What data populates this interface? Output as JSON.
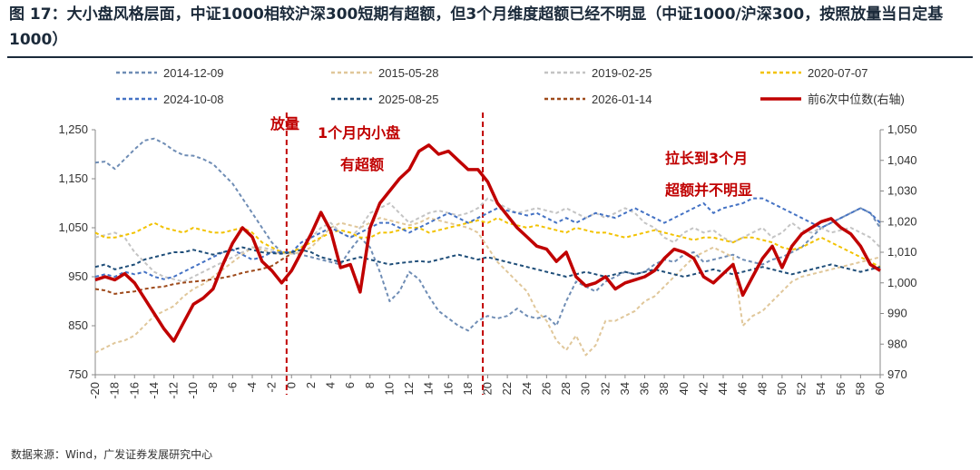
{
  "header": {
    "title": "图 17：大小盘风格层面，中证1000相较沪深300短期有超额，但3个月维度超额已经不明显（中证1000/沪深300，按照放量当日定基1000）"
  },
  "footer": {
    "source": "数据来源：Wind，广发证券发展研究中心"
  },
  "chart_data": {
    "type": "line",
    "title": "中证1000/沪深300，按照放量当日定基1000",
    "xlabel": "",
    "ylabel": "",
    "y2label": "前6次中位数(右轴)",
    "x": [
      -20,
      -19,
      -18,
      -17,
      -16,
      -15,
      -14,
      -13,
      -12,
      -11,
      -10,
      -9,
      -8,
      -7,
      -6,
      -5,
      -4,
      -3,
      -2,
      -1,
      0,
      1,
      2,
      3,
      4,
      5,
      6,
      7,
      8,
      9,
      10,
      11,
      12,
      13,
      14,
      15,
      16,
      17,
      18,
      19,
      20,
      21,
      22,
      23,
      24,
      25,
      26,
      27,
      28,
      29,
      30,
      31,
      32,
      33,
      34,
      35,
      36,
      37,
      38,
      39,
      40,
      41,
      42,
      43,
      44,
      45,
      46,
      47,
      48,
      49,
      50,
      51,
      52,
      53,
      54,
      55,
      56,
      57,
      58,
      59,
      60
    ],
    "x_tick_labels": [
      "-20",
      "-18",
      "-16",
      "-14",
      "-12",
      "-10",
      "-8",
      "-6",
      "-4",
      "-2",
      "0",
      "2",
      "4",
      "6",
      "8",
      "10",
      "12",
      "14",
      "16",
      "18",
      "20",
      "22",
      "24",
      "26",
      "28",
      "30",
      "32",
      "34",
      "36",
      "38",
      "40",
      "42",
      "44",
      "46",
      "48",
      "50",
      "52",
      "54",
      "56",
      "58",
      "60"
    ],
    "ylim": [
      750,
      1250
    ],
    "yticks": [
      "750",
      "850",
      "950",
      "1,050",
      "1,150",
      "1,250"
    ],
    "y2lim": [
      970,
      1050
    ],
    "y2ticks": [
      "970",
      "980",
      "990",
      "1,000",
      "1,010",
      "1,020",
      "1,030",
      "1,040",
      "1,050"
    ],
    "series": [
      {
        "name": "2014-12-09",
        "color": "#6f8db5",
        "dash": "dash",
        "axis": "left",
        "values": [
          1183,
          1185,
          1170,
          1190,
          1210,
          1228,
          1232,
          1222,
          1208,
          1198,
          1197,
          1190,
          1180,
          1160,
          1140,
          1110,
          1080,
          1050,
          1020,
          1000,
          998,
          995,
          990,
          985,
          980,
          975,
          1005,
          1030,
          1010,
          960,
          900,
          920,
          960,
          945,
          910,
          880,
          865,
          850,
          840,
          860,
          870,
          865,
          870,
          885,
          870,
          865,
          870,
          850,
          900,
          940,
          930,
          920,
          940,
          950,
          960,
          955,
          960,
          975,
          985,
          980,
          995,
          1000,
          980,
          985,
          990,
          995,
          985,
          980,
          975,
          985,
          990,
          1000,
          1010,
          1030,
          1050,
          1060,
          1070,
          1080,
          1090,
          1080,
          1050
        ]
      },
      {
        "name": "2015-05-28",
        "color": "#e0c79a",
        "dash": "dash",
        "axis": "left",
        "values": [
          795,
          805,
          815,
          820,
          830,
          850,
          870,
          880,
          890,
          910,
          925,
          935,
          950,
          965,
          980,
          995,
          1010,
          1005,
          1000,
          998,
          997,
          1000,
          1010,
          1030,
          1050,
          1060,
          1055,
          1050,
          1060,
          1070,
          1065,
          1060,
          1055,
          1060,
          1070,
          1065,
          1060,
          1055,
          1050,
          1040,
          1010,
          980,
          960,
          940,
          920,
          880,
          860,
          820,
          800,
          830,
          790,
          810,
          860,
          860,
          870,
          880,
          900,
          910,
          930,
          950,
          970,
          990,
          1000,
          1010,
          1000,
          990,
          850,
          870,
          880,
          900,
          920,
          940,
          950,
          955,
          960,
          965,
          970,
          975,
          980,
          985,
          990
        ]
      },
      {
        "name": "2019-02-25",
        "color": "#c4c4c4",
        "dash": "dash",
        "axis": "left",
        "values": [
          1030,
          1035,
          1040,
          1030,
          1000,
          980,
          960,
          950,
          945,
          940,
          950,
          960,
          970,
          980,
          990,
          1000,
          1010,
          1010,
          1005,
          1000,
          1000,
          1010,
          1030,
          1050,
          1060,
          1040,
          1030,
          1050,
          1080,
          1090,
          1100,
          1080,
          1060,
          1070,
          1080,
          1085,
          1080,
          1075,
          1080,
          1090,
          1110,
          1100,
          1090,
          1080,
          1085,
          1090,
          1085,
          1080,
          1090,
          1080,
          1070,
          1080,
          1070,
          1080,
          1090,
          1080,
          1060,
          1050,
          1030,
          1020,
          1040,
          1050,
          1040,
          1045,
          1030,
          1020,
          1030,
          1040,
          1050,
          1030,
          1040,
          1060,
          1045,
          1040,
          1050,
          1040,
          1045,
          1050,
          1040,
          1030,
          1010
        ]
      },
      {
        "name": "2020-07-07",
        "color": "#f2c200",
        "dash": "dash",
        "axis": "left",
        "values": [
          1040,
          1030,
          1030,
          1035,
          1040,
          1050,
          1060,
          1050,
          1045,
          1040,
          1050,
          1045,
          1040,
          1040,
          1045,
          1050,
          1040,
          1020,
          1010,
          1000,
          1000,
          1010,
          1020,
          1030,
          1040,
          1045,
          1040,
          1030,
          1030,
          1040,
          1040,
          1045,
          1050,
          1050,
          1040,
          1045,
          1050,
          1055,
          1060,
          1065,
          1060,
          1070,
          1060,
          1055,
          1050,
          1055,
          1050,
          1045,
          1040,
          1050,
          1045,
          1040,
          1040,
          1035,
          1030,
          1035,
          1040,
          1045,
          1040,
          1035,
          1030,
          1025,
          1030,
          1030,
          1025,
          1020,
          1030,
          1030,
          1025,
          1020,
          1010,
          1005,
          1010,
          1020,
          1030,
          1020,
          1010,
          1000,
          990,
          980,
          970
        ]
      },
      {
        "name": "2024-10-08",
        "color": "#4472c4",
        "dash": "dash",
        "axis": "left",
        "values": [
          950,
          955,
          950,
          960,
          955,
          960,
          950,
          945,
          950,
          960,
          970,
          980,
          990,
          1000,
          1005,
          995,
          985,
          990,
          1000,
          1000,
          1000,
          1020,
          1030,
          1040,
          1050,
          1040,
          1030,
          1040,
          1050,
          1060,
          1060,
          1050,
          1040,
          1050,
          1060,
          1070,
          1080,
          1070,
          1060,
          1070,
          1080,
          1090,
          1085,
          1080,
          1075,
          1080,
          1070,
          1060,
          1070,
          1060,
          1070,
          1080,
          1075,
          1070,
          1080,
          1090,
          1080,
          1070,
          1060,
          1070,
          1080,
          1090,
          1100,
          1080,
          1090,
          1095,
          1100,
          1110,
          1110,
          1100,
          1090,
          1080,
          1070,
          1060,
          1050,
          1060,
          1070,
          1080,
          1090,
          1080,
          1060
        ]
      },
      {
        "name": "2025-08-25",
        "color": "#1f4e79",
        "dash": "dash",
        "axis": "left",
        "values": [
          970,
          975,
          965,
          970,
          975,
          985,
          990,
          995,
          1000,
          1000,
          1005,
          1000,
          995,
          1000,
          1005,
          1010,
          1005,
          1000,
          998,
          997,
          1000,
          1005,
          1000,
          990,
          985,
          980,
          985,
          990,
          985,
          980,
          975,
          978,
          980,
          982,
          980,
          985,
          990,
          995,
          990,
          985,
          990,
          985,
          980,
          975,
          970,
          965,
          960,
          955,
          950,
          955,
          960,
          955,
          950,
          955,
          960,
          955,
          960,
          965,
          960,
          955,
          950,
          955,
          960,
          965,
          960,
          955,
          960,
          965,
          970,
          965,
          960,
          955,
          960,
          965,
          970,
          975,
          970,
          965,
          960,
          965,
          970
        ]
      },
      {
        "name": "2026-01-14",
        "color": "#9e4a1b",
        "dash": "dash",
        "axis": "left",
        "values": [
          925,
          922,
          915,
          918,
          920,
          925,
          928,
          930,
          935,
          938,
          940,
          942,
          945,
          948,
          952,
          958,
          962,
          966,
          972,
          985,
          997,
          null,
          null,
          null,
          null,
          null,
          null,
          null,
          null,
          null,
          null,
          null,
          null,
          null,
          null,
          null,
          null,
          null,
          null,
          null,
          null,
          null,
          null,
          null,
          null,
          null,
          null,
          null,
          null,
          null,
          null,
          null,
          null,
          null,
          null,
          null,
          null,
          null,
          null,
          null,
          null,
          null,
          null,
          null,
          null,
          null,
          null,
          null,
          null,
          null,
          null,
          null,
          null,
          null,
          null,
          null,
          null,
          null,
          null,
          null,
          null
        ]
      },
      {
        "name": "前6次中位数(右轴)",
        "color": "#c00000",
        "dash": "solid",
        "axis": "right",
        "values": [
          1001,
          1002,
          1001,
          1003,
          1000,
          995,
          990,
          985,
          981,
          987,
          993,
          995,
          998,
          1006,
          1013,
          1018,
          1015,
          1007,
          1004,
          1000,
          1004,
          1010,
          1016,
          1023,
          1017,
          1005,
          1006,
          997,
          1018,
          1026,
          1030,
          1034,
          1037,
          1043,
          1045,
          1042,
          1043,
          1040,
          1037,
          1037,
          1033,
          1026,
          1022,
          1018,
          1015,
          1012,
          1011,
          1007,
          1010,
          1002,
          999,
          1000,
          1002,
          998,
          1000,
          1001,
          1002,
          1004,
          1008,
          1011,
          1010,
          1008,
          1002,
          1000,
          1003,
          1006,
          996,
          1002,
          1008,
          1012,
          1005,
          1012,
          1016,
          1018,
          1020,
          1021,
          1018,
          1016,
          1012,
          1006,
          1004
        ]
      }
    ],
    "vlines": [
      {
        "x": -0.5,
        "label": "放量"
      },
      {
        "x": 19.5,
        "label": ""
      }
    ],
    "annotations": [
      "放量",
      "1个月内小盘",
      "有超额",
      "拉长到3个月",
      "超额并不明显"
    ],
    "legend_position": "top"
  }
}
